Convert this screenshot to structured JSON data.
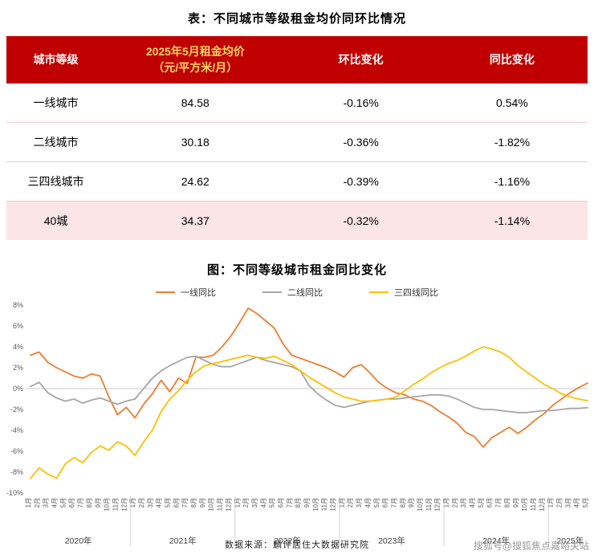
{
  "page": {
    "table_title": "表：不同城市等级租金均价同环比情况",
    "chart_title": "图：不同等级城市租金同比变化",
    "source": "数据来源：麟评居住大数据研究院",
    "watermark": "搜狐号@搜狐焦点嘉峪关站"
  },
  "colors": {
    "table_header_bg": "#c00000",
    "table_header_text": "#ffffff",
    "table_header_accent": "#ffd965",
    "highlight_row_bg": "#fbe5e6",
    "zero_line": "#c8c8c8",
    "watermark_text": "#9b9b9b"
  },
  "table": {
    "columns": [
      {
        "label": "城市等级"
      },
      {
        "label": "2025年5月租金均价",
        "sublabel": "（元/平方米/月）"
      },
      {
        "label": "环比变化"
      },
      {
        "label": "同比变化"
      }
    ],
    "rows": [
      {
        "tier": "一线城市",
        "price": "84.58",
        "mom": "-0.16%",
        "yoy": "0.54%",
        "highlight": false
      },
      {
        "tier": "二线城市",
        "price": "30.18",
        "mom": "-0.36%",
        "yoy": "-1.82%",
        "highlight": false
      },
      {
        "tier": "三四线城市",
        "price": "24.62",
        "mom": "-0.39%",
        "yoy": "-1.16%",
        "highlight": false
      },
      {
        "tier": "40城",
        "price": "34.37",
        "mom": "-0.32%",
        "yoy": "-1.14%",
        "highlight": true
      }
    ]
  },
  "chart_data": {
    "type": "line",
    "title": "图：不同等级城市租金同比变化",
    "xlabel": "",
    "ylabel": "",
    "ylim": [
      -10,
      8
    ],
    "grid": false,
    "legend_position": "top",
    "y_ticks": [
      "8%",
      "6%",
      "4%",
      "2%",
      "0%",
      "-2%",
      "-4%",
      "-6%",
      "-8%",
      "-10%"
    ],
    "x_labels": [
      "1月",
      "2月",
      "3月",
      "4月",
      "5月",
      "6月",
      "7月",
      "8月",
      "9月",
      "10月",
      "11月",
      "12月",
      "1月",
      "2月",
      "3月",
      "4月",
      "5月",
      "6月",
      "7月",
      "8月",
      "9月",
      "10月",
      "11月",
      "12月",
      "1月",
      "2月",
      "3月",
      "4月",
      "5月",
      "6月",
      "7月",
      "8月",
      "9月",
      "10月",
      "11月",
      "12月",
      "1月",
      "2月",
      "3月",
      "4月",
      "5月",
      "6月",
      "7月",
      "8月",
      "9月",
      "10月",
      "11月",
      "12月",
      "1月",
      "2月",
      "3月",
      "4月",
      "5月",
      "6月",
      "7月",
      "8月",
      "9月",
      "10月",
      "11月",
      "12月",
      "1月",
      "2月",
      "3月",
      "4月",
      "5月"
    ],
    "year_groups": [
      {
        "label": "2020年",
        "count": 12
      },
      {
        "label": "2021年",
        "count": 12
      },
      {
        "label": "2022年",
        "count": 12
      },
      {
        "label": "2023年",
        "count": 12
      },
      {
        "label": "2024年",
        "count": 12
      },
      {
        "label": "2025年",
        "count": 5
      }
    ],
    "series": [
      {
        "name": "一线同比",
        "key": "tier1-yoy",
        "color": "#ed7d31",
        "values": [
          3.2,
          3.5,
          2.5,
          2.0,
          1.6,
          1.2,
          1.0,
          1.4,
          1.2,
          -0.8,
          -2.5,
          -1.8,
          -2.8,
          -1.5,
          -0.5,
          0.8,
          -0.3,
          1.0,
          0.5,
          3.0,
          3.0,
          3.2,
          4.0,
          5.0,
          6.3,
          7.7,
          7.2,
          6.5,
          5.8,
          4.3,
          3.2,
          2.9,
          2.6,
          2.3,
          2.0,
          1.6,
          1.1,
          2.0,
          2.3,
          1.5,
          0.6,
          0.0,
          -0.4,
          -0.6,
          -1.0,
          -1.2,
          -1.6,
          -2.2,
          -2.7,
          -3.3,
          -4.2,
          -4.6,
          -5.6,
          -4.7,
          -4.2,
          -3.7,
          -4.3,
          -3.7,
          -3.0,
          -2.4,
          -1.6,
          -1.0,
          -0.4,
          0.1,
          0.54
        ]
      },
      {
        "name": "二线同比",
        "key": "tier2-yoy",
        "color": "#a6a6a6",
        "values": [
          0.2,
          0.6,
          -0.4,
          -0.9,
          -1.2,
          -1.0,
          -1.4,
          -1.1,
          -0.9,
          -1.2,
          -1.5,
          -1.2,
          -1.0,
          0.0,
          1.0,
          1.7,
          2.2,
          2.6,
          3.0,
          3.1,
          2.7,
          2.3,
          2.1,
          2.1,
          2.4,
          2.7,
          3.0,
          2.7,
          2.5,
          2.3,
          2.1,
          1.7,
          0.3,
          -0.5,
          -1.1,
          -1.6,
          -1.8,
          -1.6,
          -1.4,
          -1.2,
          -1.1,
          -1.0,
          -1.0,
          -0.9,
          -0.8,
          -0.7,
          -0.6,
          -0.6,
          -0.7,
          -1.0,
          -1.4,
          -1.8,
          -2.0,
          -2.0,
          -2.1,
          -2.2,
          -2.3,
          -2.3,
          -2.2,
          -2.1,
          -2.1,
          -2.0,
          -1.9,
          -1.9,
          -1.82
        ]
      },
      {
        "name": "三四线同比",
        "key": "tier34-yoy",
        "color": "#ffc000",
        "values": [
          -8.6,
          -7.6,
          -8.2,
          -8.6,
          -7.2,
          -6.6,
          -7.1,
          -6.1,
          -5.5,
          -5.9,
          -5.1,
          -5.5,
          -6.4,
          -5.1,
          -4.0,
          -2.2,
          -1.0,
          -0.2,
          0.8,
          1.6,
          2.2,
          2.4,
          2.6,
          2.8,
          3.0,
          3.2,
          3.0,
          2.9,
          3.1,
          2.7,
          2.3,
          1.7,
          1.1,
          0.6,
          0.1,
          -0.4,
          -0.8,
          -1.0,
          -1.2,
          -1.2,
          -1.1,
          -1.0,
          -0.8,
          -0.2,
          0.4,
          0.9,
          1.5,
          2.0,
          2.4,
          2.7,
          3.1,
          3.6,
          4.0,
          3.8,
          3.5,
          3.0,
          2.2,
          1.6,
          1.0,
          0.4,
          0.0,
          -0.5,
          -0.8,
          -1.0,
          -1.16
        ]
      }
    ]
  }
}
